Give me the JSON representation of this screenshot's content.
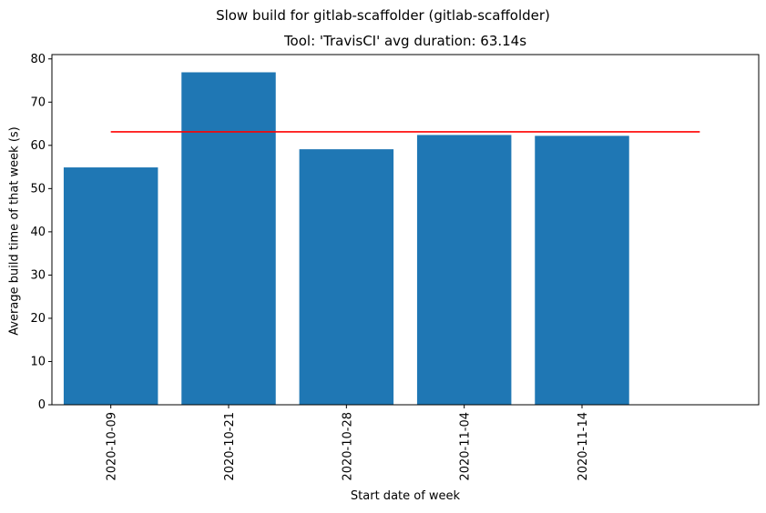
{
  "chart_data": {
    "type": "bar",
    "suptitle": "Slow build for gitlab-scaffolder (gitlab-scaffolder)",
    "title": "Tool: 'TravisCI' avg duration: 63.14s",
    "xlabel": "Start date of week",
    "ylabel": "Average build time of that week (s)",
    "categories": [
      "2020-10-09",
      "2020-10-21",
      "2020-10-28",
      "2020-11-04",
      "2020-11-14"
    ],
    "values": [
      54.9,
      76.9,
      59.1,
      62.4,
      62.2
    ],
    "bar_color": "#1f77b4",
    "average_line": {
      "value": 63.14,
      "color": "#ff0000"
    },
    "ylim": [
      0,
      81
    ],
    "yticks": [
      0,
      10,
      20,
      30,
      40,
      50,
      60,
      70,
      80
    ],
    "grid": false,
    "legend": "none"
  }
}
